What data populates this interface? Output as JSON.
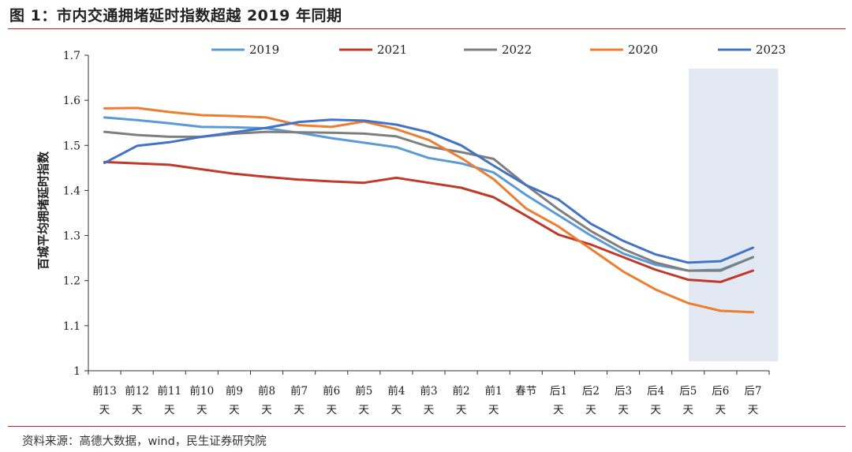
{
  "figure": {
    "title": "图 1：市内交通拥堵延时指数超越 2019 年同期",
    "source": "资料来源：高德大数据，wind，民生证券研究院"
  },
  "chart_data": {
    "type": "line",
    "ylabel": "百城平均拥堵延时指数",
    "ylim": [
      1.0,
      1.7
    ],
    "yticks": [
      "1",
      "1.1",
      "1.2",
      "1.3",
      "1.4",
      "1.5",
      "1.6",
      "1.7"
    ],
    "categories": [
      [
        "前13",
        "天"
      ],
      [
        "前12",
        "天"
      ],
      [
        "前11",
        "天"
      ],
      [
        "前10",
        "天"
      ],
      [
        "前9",
        "天"
      ],
      [
        "前8",
        "天"
      ],
      [
        "前7",
        "天"
      ],
      [
        "前6",
        "天"
      ],
      [
        "前5",
        "天"
      ],
      [
        "前4",
        "天"
      ],
      [
        "前3",
        "天"
      ],
      [
        "前2",
        "天"
      ],
      [
        "前1",
        "天"
      ],
      [
        "春节",
        ""
      ],
      [
        "后1",
        "天"
      ],
      [
        "后2",
        "天"
      ],
      [
        "后3",
        "天"
      ],
      [
        "后4",
        "天"
      ],
      [
        "后5",
        "天"
      ],
      [
        "后6",
        "天"
      ],
      [
        "后7",
        "天"
      ]
    ],
    "highlight": {
      "from": "后5",
      "to": "后7",
      "color": "#e3e9f3"
    },
    "grid": false,
    "legend_position": "top",
    "series": [
      {
        "name": "2019",
        "color": "#5b9bd5",
        "values": [
          1.562,
          1.556,
          1.549,
          1.541,
          1.54,
          1.538,
          1.528,
          1.516,
          1.506,
          1.496,
          1.472,
          1.46,
          1.44,
          1.39,
          1.345,
          1.3,
          1.26,
          1.235,
          1.222,
          1.224,
          1.252
        ]
      },
      {
        "name": "2021",
        "color": "#c0392b",
        "values": [
          1.463,
          1.46,
          1.457,
          1.447,
          1.437,
          1.43,
          1.424,
          1.42,
          1.417,
          1.428,
          1.417,
          1.406,
          1.385,
          1.344,
          1.302,
          1.28,
          1.252,
          1.224,
          1.202,
          1.197,
          1.222
        ]
      },
      {
        "name": "2022",
        "color": "#7f7f7f",
        "values": [
          1.53,
          1.523,
          1.519,
          1.519,
          1.526,
          1.53,
          1.529,
          1.528,
          1.526,
          1.52,
          1.497,
          1.485,
          1.47,
          1.412,
          1.358,
          1.31,
          1.27,
          1.24,
          1.222,
          1.222,
          1.252
        ]
      },
      {
        "name": "2020",
        "color": "#ed7d31",
        "values": [
          1.582,
          1.583,
          1.574,
          1.567,
          1.565,
          1.562,
          1.545,
          1.541,
          1.553,
          1.536,
          1.512,
          1.472,
          1.425,
          1.36,
          1.32,
          1.27,
          1.22,
          1.18,
          1.15,
          1.133,
          1.13
        ]
      },
      {
        "name": "2023",
        "color": "#4472c4",
        "values": [
          1.461,
          1.499,
          1.507,
          1.519,
          1.529,
          1.539,
          1.552,
          1.557,
          1.555,
          1.546,
          1.529,
          1.5,
          1.455,
          1.412,
          1.38,
          1.326,
          1.288,
          1.258,
          1.24,
          1.243,
          1.273
        ]
      }
    ]
  }
}
